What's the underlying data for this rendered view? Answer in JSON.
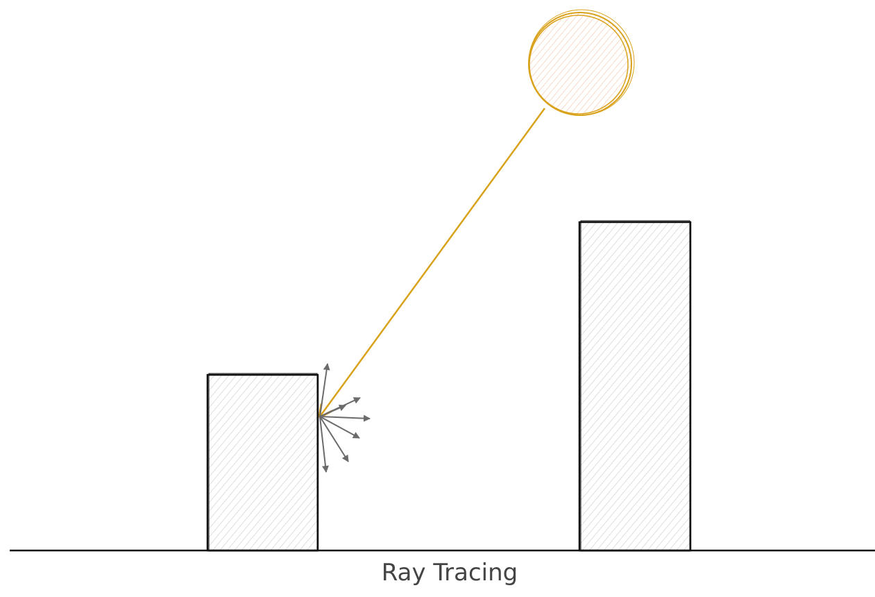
{
  "caption": "Ray Tracing"
}
